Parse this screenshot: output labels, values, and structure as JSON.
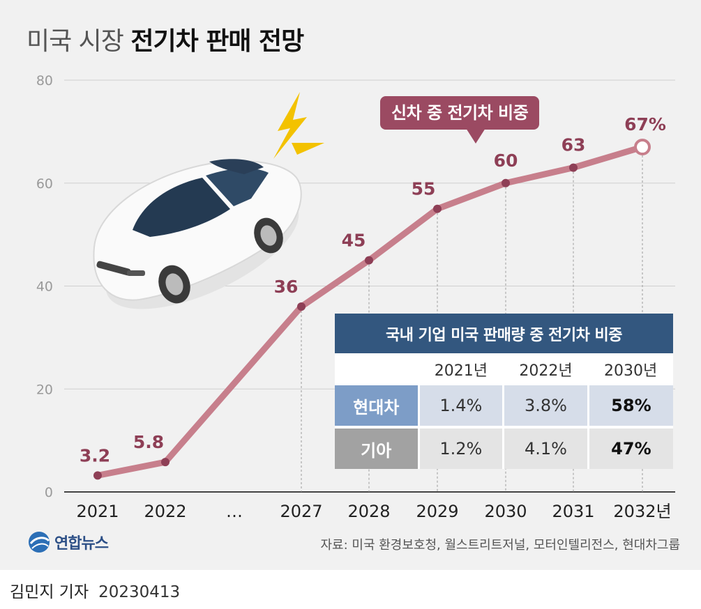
{
  "title": {
    "light": "미국 시장",
    "bold": "전기차 판매 전망"
  },
  "colors": {
    "line": "#c77f8c",
    "label": "#8e3f56",
    "callout": "#9b4a62",
    "table_header": "#33577f",
    "hyundai": "#7d9dc7",
    "kia": "#a2a2a2"
  },
  "callout": "신차 중 전기차 비중",
  "chart_data": {
    "type": "line",
    "title": "미국 시장 전기차 판매 전망",
    "series_name": "신차 중 전기차 비중",
    "categories": [
      "2021",
      "2022",
      "…",
      "2027",
      "2028",
      "2029",
      "2030",
      "2031",
      "2032년"
    ],
    "points": [
      {
        "category": "2021",
        "value": 3.2,
        "label": "3.2"
      },
      {
        "category": "2022",
        "value": 5.8,
        "label": "5.8"
      },
      {
        "category": "2027",
        "value": 36,
        "label": "36"
      },
      {
        "category": "2028",
        "value": 45,
        "label": "45"
      },
      {
        "category": "2029",
        "value": 55,
        "label": "55"
      },
      {
        "category": "2030",
        "value": 60,
        "label": "60"
      },
      {
        "category": "2031",
        "value": 63,
        "label": "63"
      },
      {
        "category": "2032년",
        "value": 67,
        "label": "67%"
      }
    ],
    "ylim": [
      0,
      80
    ],
    "yticks": [
      0,
      20,
      40,
      60,
      80
    ],
    "grid": true
  },
  "table": {
    "title": "국내 기업 미국 판매량 중 전기차 비중",
    "years": [
      "2021년",
      "2022년",
      "2030년"
    ],
    "rows": [
      {
        "name": "현대차",
        "values": [
          "1.4%",
          "3.8%",
          "58%"
        ]
      },
      {
        "name": "기아",
        "values": [
          "1.2%",
          "4.1%",
          "47%"
        ]
      }
    ]
  },
  "logo": "연합뉴스",
  "source": "자료: 미국 환경보호청, 월스트리트저널, 모터인텔리전스, 현대차그룹",
  "byline": {
    "author": "김민지 기자",
    "date": "20230413"
  }
}
